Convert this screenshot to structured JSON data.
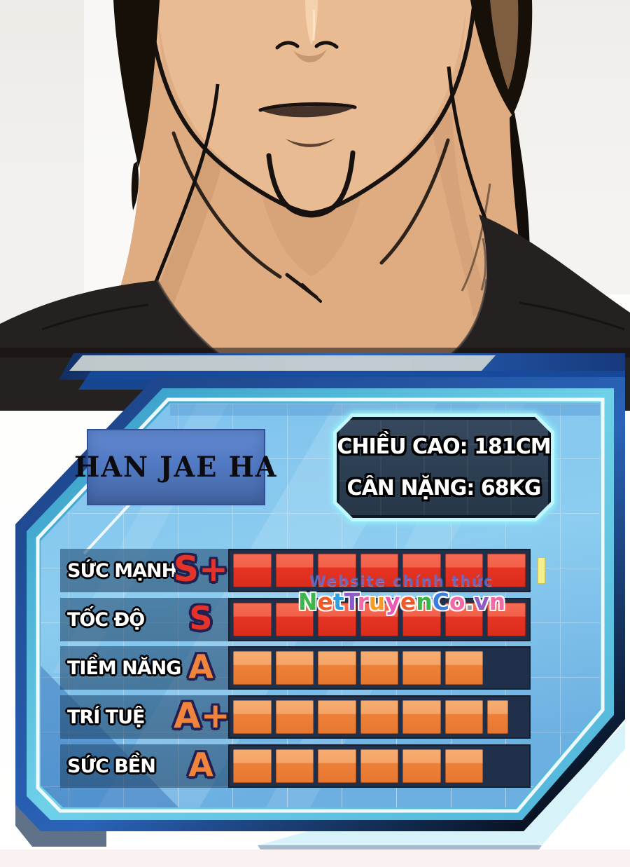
{
  "panel": {
    "name_plate": {
      "text": "HAN JAE HA"
    },
    "info_box": {
      "height": "CHIỀU CAO: 181CM",
      "weight": "CÂN NẶNG: 68KG"
    },
    "stats": [
      {
        "label": "SỨC MẠNH",
        "grade": "S+",
        "grade_color": "#e4342a",
        "tier": "red",
        "slots": 7,
        "filled": 7,
        "partial": 0,
        "marker": true
      },
      {
        "label": "TỐC ĐỘ",
        "grade": "S",
        "grade_color": "#e4342a",
        "tier": "red",
        "slots": 7,
        "filled": 7,
        "partial": 0,
        "marker": false
      },
      {
        "label": "TIỀM NĂNG",
        "grade": "A",
        "grade_color": "#f0843c",
        "tier": "orange",
        "slots": 7,
        "filled": 6,
        "partial": 0,
        "marker": false
      },
      {
        "label": "TRÍ TUỆ",
        "grade": "A+",
        "grade_color": "#f0843c",
        "tier": "orange",
        "slots": 7,
        "filled": 6,
        "partial": 0.55,
        "marker": false
      },
      {
        "label": "SỨC BỀN",
        "grade": "A",
        "grade_color": "#f0843c",
        "tier": "orange",
        "slots": 7,
        "filled": 6,
        "partial": 0,
        "marker": false
      }
    ]
  },
  "watermark": {
    "line1": "Website chính thức",
    "brand": [
      [
        "N",
        "#3cb54b"
      ],
      [
        "e",
        "#f05a28"
      ],
      [
        "t",
        "#2f9fe0"
      ],
      [
        "T",
        "#8c5bc8"
      ],
      [
        "r",
        "#f06ba8"
      ],
      [
        "u",
        "#f59b2a"
      ],
      [
        "y",
        "#e85bb0"
      ],
      [
        "e",
        "#f05a28"
      ],
      [
        "n",
        "#3cb54b"
      ],
      [
        "C",
        "#3b7de0"
      ],
      [
        "o",
        "#f06ba8"
      ],
      [
        ".",
        "#9a9a9a"
      ],
      [
        "v",
        "#8c5bc8"
      ],
      [
        "n",
        "#f06ba8"
      ]
    ]
  },
  "colors": {
    "segment_red": "#e63423",
    "segment_orange": "#ee8139",
    "marker_yellow": "#f4ef8d",
    "panel_glow": "#8ef0fb",
    "panel_teal_border": "#52b4d8",
    "panel_navy_border": "#1c4186",
    "panel_interior": "#7cc0ea"
  }
}
